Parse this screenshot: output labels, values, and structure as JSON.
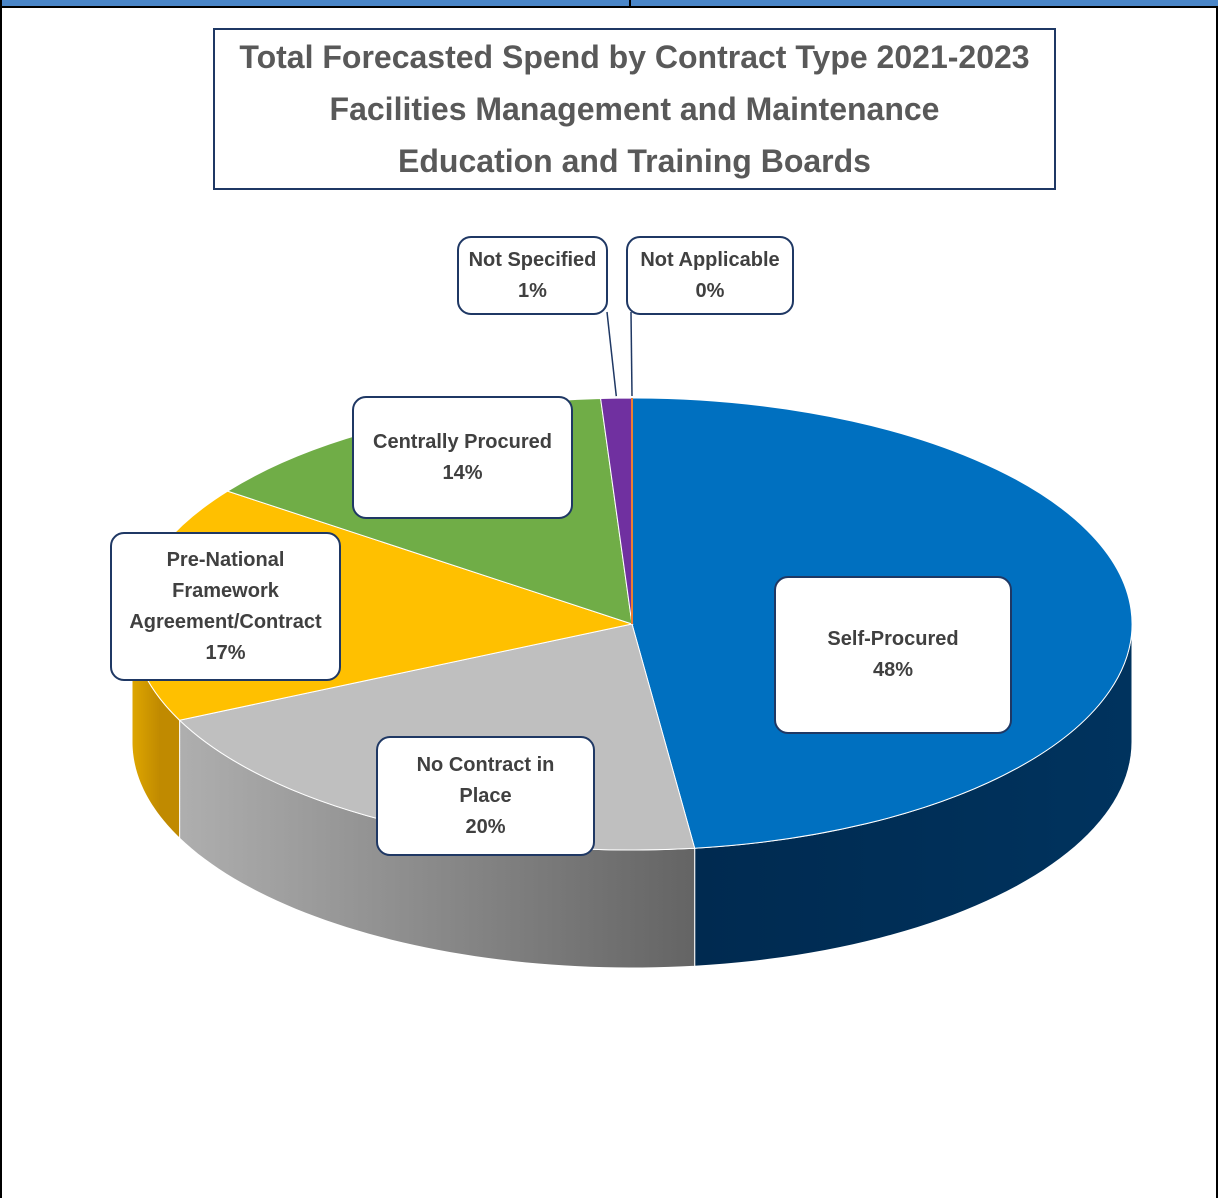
{
  "chart_data": {
    "type": "pie",
    "title_lines": [
      "Total Forecasted Spend by Contract Type 2021-2023",
      "Facilities Management and Maintenance",
      "Education and Training Boards"
    ],
    "slices": [
      {
        "name": "Self-Procured",
        "label_lines": [
          "Self-Procured"
        ],
        "value": 48,
        "value_label": "48%",
        "color": "#0070c0",
        "side_dark": "#002a50",
        "side_light": "#00335e"
      },
      {
        "name": "No Contract in Place",
        "label_lines": [
          "No Contract in",
          "Place"
        ],
        "value": 20,
        "value_label": "20%",
        "color": "#bfbfbf",
        "side_dark": "#646464",
        "side_light": "#b2b2b2"
      },
      {
        "name": "Pre-National Framework Agreement/Contract",
        "label_lines": [
          "Pre-National",
          "Framework",
          "Agreement/Contract"
        ],
        "value": 17,
        "value_label": "17%",
        "color": "#ffc000",
        "side_dark": "#c08a00",
        "side_light": "#e0a800"
      },
      {
        "name": "Centrally Procured",
        "label_lines": [
          "Centrally Procured"
        ],
        "value": 14,
        "value_label": "14%",
        "color": "#70ad47",
        "side_dark": "#46702c",
        "side_light": "#5a8c3a"
      },
      {
        "name": "Not Specified",
        "label_lines": [
          "Not Specified"
        ],
        "value": 1,
        "value_label": "1%",
        "color": "#7030a0",
        "side_dark": "#3c1a56",
        "side_light": "#5a2780"
      },
      {
        "name": "Not Applicable",
        "label_lines": [
          "Not Applicable"
        ],
        "value": 0,
        "value_label": "0%",
        "color": "#ed7d31",
        "side_dark": "#8a4517",
        "side_light": "#b85f22"
      }
    ],
    "colors": {
      "title_border": "#1f3864",
      "label_border": "#1f3864",
      "text": "#595959",
      "top_bar": "#4a86c8"
    }
  }
}
